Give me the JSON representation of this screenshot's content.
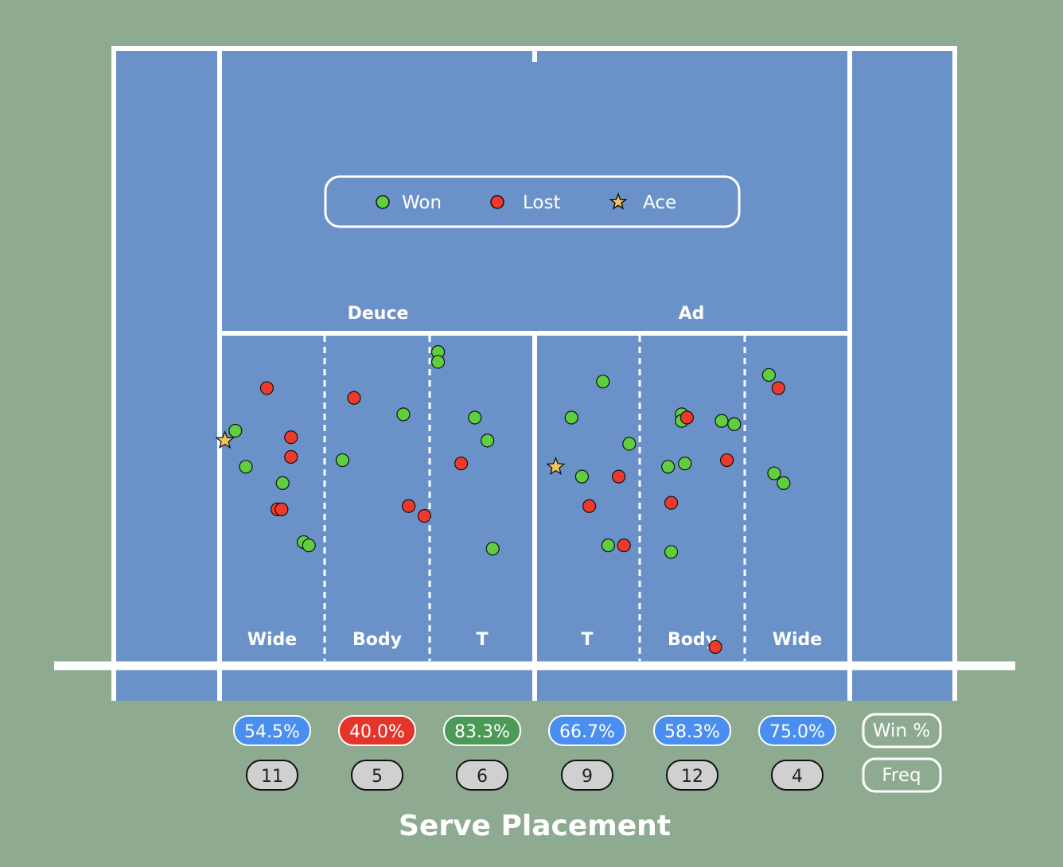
{
  "title": "Serve Placement",
  "colors": {
    "background": "#8eab92",
    "court": "#6b92c8",
    "lines": "#ffffff",
    "won": "#5fcf3f",
    "lost": "#ee3a2c",
    "ace": "#f3c45e",
    "badge_blue": "#4a8ff0",
    "badge_red": "#e5342a",
    "badge_green": "#4c9a57",
    "freq_fill": "#d0d0d0"
  },
  "legend": {
    "won_label": "Won",
    "lost_label": "Lost",
    "ace_label": "Ace"
  },
  "sides": [
    "Deuce",
    "Ad"
  ],
  "row_labels": {
    "win_pct": "Win %",
    "freq": "Freq"
  },
  "zones": [
    {
      "side": "Deuce",
      "label": "Wide",
      "win_pct": "54.5%",
      "freq": "11",
      "badge": "blue"
    },
    {
      "side": "Deuce",
      "label": "Body",
      "win_pct": "40.0%",
      "freq": "5",
      "badge": "red"
    },
    {
      "side": "Deuce",
      "label": "T",
      "win_pct": "83.3%",
      "freq": "6",
      "badge": "green"
    },
    {
      "side": "Ad",
      "label": "T",
      "win_pct": "66.7%",
      "freq": "9",
      "badge": "blue"
    },
    {
      "side": "Ad",
      "label": "Body",
      "win_pct": "58.3%",
      "freq": "12",
      "badge": "blue"
    },
    {
      "side": "Ad",
      "label": "Wide",
      "win_pct": "75.0%",
      "freq": "4",
      "badge": "blue"
    }
  ],
  "chart_data": {
    "type": "scatter",
    "title": "Serve Placement",
    "categories": [
      "Wide",
      "Body",
      "T",
      "T",
      "Body",
      "Wide"
    ],
    "series": [
      {
        "name": "Won",
        "points": [
          [
            1.15,
            0.29
          ],
          [
            1.25,
            0.4
          ],
          [
            1.6,
            0.45
          ],
          [
            1.8,
            0.63
          ],
          [
            1.85,
            0.64
          ],
          [
            2.17,
            0.38
          ],
          [
            2.75,
            0.24
          ],
          [
            3.08,
            0.05
          ],
          [
            3.08,
            0.08
          ],
          [
            3.43,
            0.25
          ],
          [
            3.55,
            0.32
          ],
          [
            3.6,
            0.65
          ],
          [
            4.35,
            0.25
          ],
          [
            4.45,
            0.43
          ],
          [
            4.65,
            0.14
          ],
          [
            4.7,
            0.64
          ],
          [
            4.9,
            0.33
          ],
          [
            5.27,
            0.4
          ],
          [
            5.4,
            0.24
          ],
          [
            5.4,
            0.26
          ],
          [
            5.43,
            0.39
          ],
          [
            5.3,
            0.66
          ],
          [
            5.78,
            0.26
          ],
          [
            5.9,
            0.27
          ],
          [
            6.23,
            0.12
          ],
          [
            6.28,
            0.42
          ],
          [
            6.37,
            0.45
          ]
        ]
      },
      {
        "name": "Lost",
        "points": [
          [
            1.45,
            0.16
          ],
          [
            1.68,
            0.31
          ],
          [
            1.68,
            0.37
          ],
          [
            1.55,
            0.53
          ],
          [
            1.59,
            0.53
          ],
          [
            2.28,
            0.19
          ],
          [
            2.8,
            0.52
          ],
          [
            2.95,
            0.55
          ],
          [
            3.3,
            0.39
          ],
          [
            4.52,
            0.52
          ],
          [
            4.8,
            0.43
          ],
          [
            4.85,
            0.64
          ],
          [
            5.45,
            0.25
          ],
          [
            5.3,
            0.51
          ],
          [
            5.72,
            0.95
          ],
          [
            5.83,
            0.38
          ],
          [
            6.32,
            0.16
          ]
        ]
      },
      {
        "name": "Ace",
        "points": [
          [
            1.05,
            0.32
          ],
          [
            4.2,
            0.4
          ]
        ]
      }
    ]
  }
}
